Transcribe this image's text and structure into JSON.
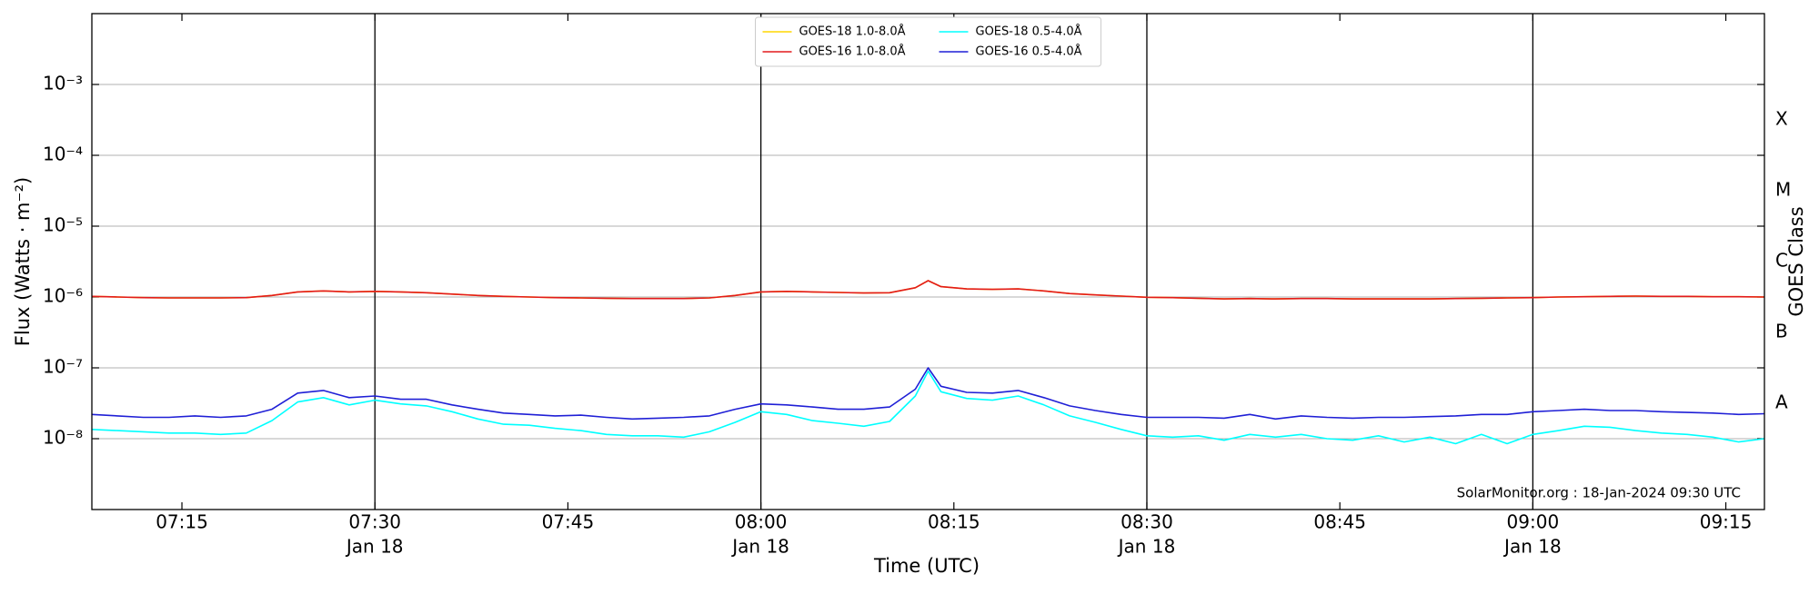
{
  "chart_data": {
    "type": "line",
    "y_label": "Flux (Watts · m⁻²)",
    "x_label": "Time (UTC)",
    "y2_label": "GOES Class",
    "footer": "SolarMonitor.org : 18-Jan-2024 09:30 UTC",
    "log_y": true,
    "grid": true,
    "legend_corner": "upper center",
    "ylim": [
      1e-09,
      0.01
    ],
    "yticks": [
      {
        "value": 1e-08,
        "label": "10⁻⁸"
      },
      {
        "value": 1e-07,
        "label": "10⁻⁷"
      },
      {
        "value": 1e-06,
        "label": "10⁻⁶"
      },
      {
        "value": 1e-05,
        "label": "10⁻⁵"
      },
      {
        "value": 0.0001,
        "label": "10⁻⁴"
      },
      {
        "value": 0.001,
        "label": "10⁻³"
      }
    ],
    "y2lim": [
      1e-09,
      0.01
    ],
    "y2ticks": [
      {
        "value": 0.000316,
        "label": "X"
      },
      {
        "value": 3.16e-05,
        "label": "M"
      },
      {
        "value": 3.16e-06,
        "label": "C"
      },
      {
        "value": 3.16e-07,
        "label": "B"
      },
      {
        "value": 3.16e-08,
        "label": "A"
      }
    ],
    "xlim": [
      "07:08",
      "09:18"
    ],
    "xticks": [
      "07:15",
      {
        "value": "07:30",
        "label": "07:30",
        "date": "Jan 18"
      },
      "07:45",
      {
        "value": "08:00",
        "label": "08:00",
        "date": "Jan 18"
      },
      "08:15",
      {
        "value": "08:30",
        "label": "08:30",
        "date": "Jan 18"
      },
      "08:45",
      {
        "value": "09:00",
        "label": "09:00",
        "date": "Jan 18"
      },
      "09:15"
    ],
    "x": [
      "07:08",
      "07:10",
      "07:12",
      "07:14",
      "07:16",
      "07:18",
      "07:20",
      "07:22",
      "07:24",
      "07:26",
      "07:28",
      "07:30",
      "07:32",
      "07:34",
      "07:36",
      "07:38",
      "07:40",
      "07:42",
      "07:44",
      "07:46",
      "07:48",
      "07:50",
      "07:52",
      "07:54",
      "07:56",
      "07:58",
      "08:00",
      "08:02",
      "08:04",
      "08:06",
      "08:08",
      "08:10",
      "08:12",
      "08:13",
      "08:14",
      "08:16",
      "08:18",
      "08:20",
      "08:22",
      "08:24",
      "08:26",
      "08:28",
      "08:30",
      "08:32",
      "08:34",
      "08:36",
      "08:38",
      "08:40",
      "08:42",
      "08:44",
      "08:46",
      "08:48",
      "08:50",
      "08:52",
      "08:54",
      "08:56",
      "08:58",
      "09:00",
      "09:02",
      "09:04",
      "09:06",
      "09:08",
      "09:10",
      "09:12",
      "09:14",
      "09:16",
      "09:18"
    ],
    "series": [
      {
        "name": "GOES-18 1.0-8.0Å",
        "color": "#ffd700",
        "values": [
          1.02e-06,
          1e-06,
          9.8e-07,
          9.7e-07,
          9.7e-07,
          9.7e-07,
          9.8e-07,
          1.05e-06,
          1.18e-06,
          1.22e-06,
          1.18e-06,
          1.2e-06,
          1.18e-06,
          1.15e-06,
          1.1e-06,
          1.05e-06,
          1.02e-06,
          1e-06,
          9.8e-07,
          9.7e-07,
          9.6e-07,
          9.5e-07,
          9.5e-07,
          9.5e-07,
          9.7e-07,
          1.05e-06,
          1.18e-06,
          1.2e-06,
          1.18e-06,
          1.16e-06,
          1.14e-06,
          1.15e-06,
          1.35e-06,
          1.7e-06,
          1.4e-06,
          1.3e-06,
          1.28e-06,
          1.3e-06,
          1.22e-06,
          1.12e-06,
          1.07e-06,
          1.03e-06,
          9.9e-07,
          9.8e-07,
          9.6e-07,
          9.4e-07,
          9.5e-07,
          9.4e-07,
          9.5e-07,
          9.5e-07,
          9.4e-07,
          9.4e-07,
          9.4e-07,
          9.4e-07,
          9.5e-07,
          9.6e-07,
          9.7e-07,
          9.8e-07,
          1e-06,
          1.01e-06,
          1.02e-06,
          1.03e-06,
          1.02e-06,
          1.02e-06,
          1.01e-06,
          1.01e-06,
          1e-06
        ]
      },
      {
        "name": "GOES-16 1.0-8.0Å",
        "color": "#e31a1c",
        "values": [
          1.02e-06,
          1e-06,
          9.8e-07,
          9.7e-07,
          9.7e-07,
          9.7e-07,
          9.8e-07,
          1.05e-06,
          1.18e-06,
          1.22e-06,
          1.18e-06,
          1.2e-06,
          1.18e-06,
          1.15e-06,
          1.1e-06,
          1.05e-06,
          1.02e-06,
          1e-06,
          9.8e-07,
          9.7e-07,
          9.6e-07,
          9.5e-07,
          9.5e-07,
          9.5e-07,
          9.7e-07,
          1.05e-06,
          1.18e-06,
          1.2e-06,
          1.18e-06,
          1.16e-06,
          1.14e-06,
          1.15e-06,
          1.35e-06,
          1.7e-06,
          1.4e-06,
          1.3e-06,
          1.28e-06,
          1.3e-06,
          1.22e-06,
          1.12e-06,
          1.07e-06,
          1.03e-06,
          9.9e-07,
          9.8e-07,
          9.6e-07,
          9.4e-07,
          9.5e-07,
          9.4e-07,
          9.5e-07,
          9.5e-07,
          9.4e-07,
          9.4e-07,
          9.4e-07,
          9.4e-07,
          9.5e-07,
          9.6e-07,
          9.7e-07,
          9.8e-07,
          1e-06,
          1.01e-06,
          1.02e-06,
          1.03e-06,
          1.02e-06,
          1.02e-06,
          1.01e-06,
          1.01e-06,
          1e-06
        ]
      },
      {
        "name": "GOES-18 0.5-4.0Å",
        "color": "#00ffff",
        "values": [
          1.35e-08,
          1.3e-08,
          1.25e-08,
          1.2e-08,
          1.2e-08,
          1.15e-08,
          1.2e-08,
          1.8e-08,
          3.3e-08,
          3.8e-08,
          3e-08,
          3.5e-08,
          3.1e-08,
          2.9e-08,
          2.4e-08,
          1.9e-08,
          1.6e-08,
          1.55e-08,
          1.4e-08,
          1.3e-08,
          1.15e-08,
          1.1e-08,
          1.1e-08,
          1.05e-08,
          1.25e-08,
          1.7e-08,
          2.4e-08,
          2.2e-08,
          1.8e-08,
          1.65e-08,
          1.5e-08,
          1.75e-08,
          4e-08,
          9e-08,
          4.6e-08,
          3.7e-08,
          3.5e-08,
          4e-08,
          3e-08,
          2.1e-08,
          1.7e-08,
          1.35e-08,
          1.1e-08,
          1.05e-08,
          1.1e-08,
          9.5e-09,
          1.15e-08,
          1.05e-08,
          1.15e-08,
          1e-08,
          9.5e-09,
          1.1e-08,
          9e-09,
          1.05e-08,
          8.5e-09,
          1.15e-08,
          8.5e-09,
          1.15e-08,
          1.3e-08,
          1.5e-08,
          1.45e-08,
          1.3e-08,
          1.2e-08,
          1.15e-08,
          1.05e-08,
          9e-09,
          1e-08
        ]
      },
      {
        "name": "GOES-16 0.5-4.0Å",
        "color": "#1f1fd6",
        "values": [
          2.2e-08,
          2.1e-08,
          2e-08,
          2e-08,
          2.1e-08,
          2e-08,
          2.1e-08,
          2.6e-08,
          4.4e-08,
          4.8e-08,
          3.8e-08,
          4e-08,
          3.6e-08,
          3.6e-08,
          3e-08,
          2.6e-08,
          2.3e-08,
          2.2e-08,
          2.1e-08,
          2.15e-08,
          2e-08,
          1.9e-08,
          1.95e-08,
          2e-08,
          2.1e-08,
          2.6e-08,
          3.1e-08,
          3e-08,
          2.8e-08,
          2.6e-08,
          2.6e-08,
          2.8e-08,
          5e-08,
          1e-07,
          5.5e-08,
          4.5e-08,
          4.4e-08,
          4.8e-08,
          3.8e-08,
          2.9e-08,
          2.5e-08,
          2.2e-08,
          2e-08,
          2e-08,
          2e-08,
          1.95e-08,
          2.2e-08,
          1.9e-08,
          2.1e-08,
          2e-08,
          1.95e-08,
          2e-08,
          2e-08,
          2.05e-08,
          2.1e-08,
          2.2e-08,
          2.2e-08,
          2.4e-08,
          2.5e-08,
          2.6e-08,
          2.5e-08,
          2.5e-08,
          2.4e-08,
          2.35e-08,
          2.3e-08,
          2.2e-08,
          2.25e-08
        ]
      }
    ]
  }
}
